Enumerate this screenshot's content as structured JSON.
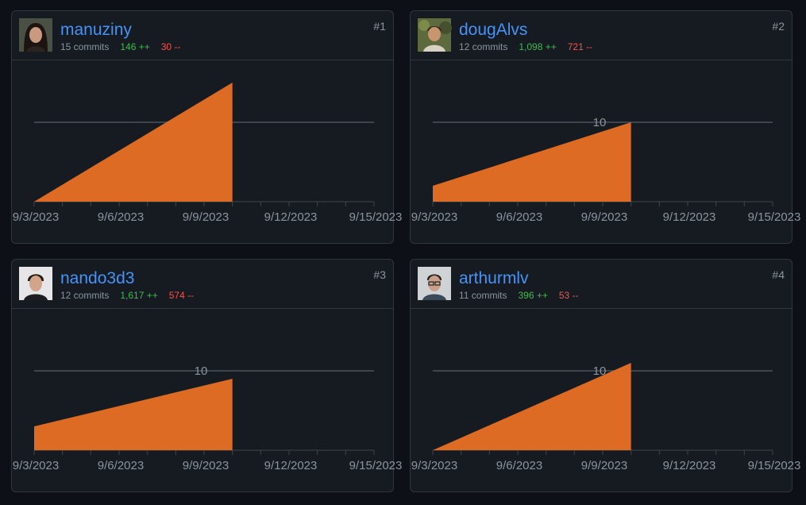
{
  "colors": {
    "background": "#0d1117",
    "card": "#161b22",
    "border": "#30363d",
    "link": "#4493f8",
    "muted": "#8b949e",
    "additions": "#3fb950",
    "deletions": "#f85149",
    "area": "#dd6b24",
    "grid": "#3d444d",
    "tick_text": "#8b949e"
  },
  "contributors": [
    {
      "rank": "#1",
      "login": "manuziny",
      "commits": "15 commits",
      "additions": "146 ++",
      "deletions": "30 --",
      "avatar_icon": "avatar-woman-icon"
    },
    {
      "rank": "#2",
      "login": "dougAlvs",
      "commits": "12 commits",
      "additions": "1,098 ++",
      "deletions": "721 --",
      "avatar_icon": "avatar-man-outdoor-icon"
    },
    {
      "rank": "#3",
      "login": "nando3d3",
      "commits": "12 commits",
      "additions": "1,617 ++",
      "deletions": "574 --",
      "avatar_icon": "avatar-man-icon"
    },
    {
      "rank": "#4",
      "login": "arthurmlv",
      "commits": "11 commits",
      "additions": "396 ++",
      "deletions": "53 --",
      "avatar_icon": "avatar-man-glasses-icon"
    }
  ],
  "chart_data": [
    {
      "type": "area",
      "series": [
        {
          "x": [
            "9/3/2023",
            "9/10/2023"
          ],
          "y": [
            0,
            15
          ]
        }
      ],
      "x_ticks": [
        "9/3/2023",
        "9/6/2023",
        "9/9/2023",
        "9/12/2023",
        "9/15/2023"
      ],
      "y_ticks": [
        10
      ],
      "y_tick_labels": [
        ""
      ],
      "ylim": [
        0,
        10
      ],
      "xlim": [
        "9/3/2023",
        "9/15/2023"
      ],
      "grid": true
    },
    {
      "type": "area",
      "series": [
        {
          "x": [
            "9/3/2023",
            "9/10/2023"
          ],
          "y": [
            2,
            10
          ]
        }
      ],
      "x_ticks": [
        "9/3/2023",
        "9/6/2023",
        "9/9/2023",
        "9/12/2023",
        "9/15/2023"
      ],
      "y_ticks": [
        10
      ],
      "y_tick_labels": [
        "10"
      ],
      "ylim": [
        0,
        10
      ],
      "xlim": [
        "9/3/2023",
        "9/15/2023"
      ],
      "grid": true
    },
    {
      "type": "area",
      "series": [
        {
          "x": [
            "9/3/2023",
            "9/10/2023"
          ],
          "y": [
            3,
            9
          ]
        }
      ],
      "x_ticks": [
        "9/3/2023",
        "9/6/2023",
        "9/9/2023",
        "9/12/2023",
        "9/15/2023"
      ],
      "y_ticks": [
        10
      ],
      "y_tick_labels": [
        "10"
      ],
      "ylim": [
        0,
        10
      ],
      "xlim": [
        "9/3/2023",
        "9/15/2023"
      ],
      "grid": true
    },
    {
      "type": "area",
      "series": [
        {
          "x": [
            "9/3/2023",
            "9/10/2023"
          ],
          "y": [
            0,
            11
          ]
        }
      ],
      "x_ticks": [
        "9/3/2023",
        "9/6/2023",
        "9/9/2023",
        "9/12/2023",
        "9/15/2023"
      ],
      "y_ticks": [
        10
      ],
      "y_tick_labels": [
        "10"
      ],
      "ylim": [
        0,
        10
      ],
      "xlim": [
        "9/3/2023",
        "9/15/2023"
      ],
      "grid": true
    }
  ]
}
